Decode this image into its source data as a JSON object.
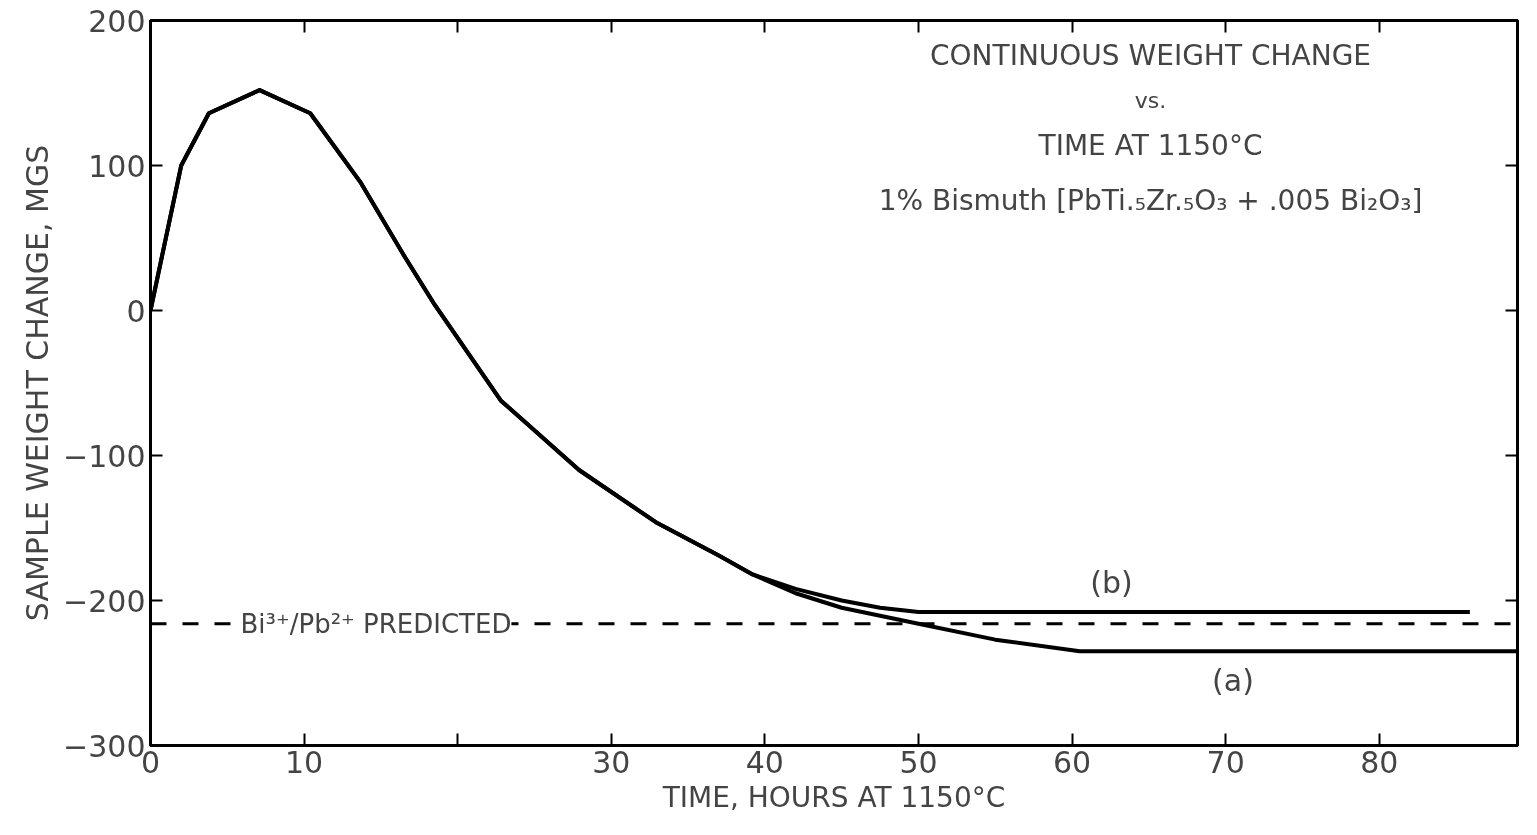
{
  "chart_data": {
    "type": "line",
    "title": "CONTINUOUS WEIGHT CHANGE\nvs.\nTIME AT 1150°C",
    "subtitle": "1% Bismuth [PbTi.₅Zr.₅O₃ + .005 Bi₂O₃]",
    "xlabel": "TIME, HOURS AT 1150°C",
    "ylabel": "SAMPLE WEIGHT CHANGE, MGS",
    "series": [
      {
        "name": "(a)",
        "color": "#000000",
        "x": [
          0,
          2.0,
          3.8,
          7.1,
          10.4,
          13.7,
          16.5,
          18.5,
          22.8,
          27.9,
          32.9,
          37,
          39.2,
          42,
          45,
          50,
          55,
          60.5,
          89
        ],
        "values": [
          0,
          100,
          136,
          152,
          136,
          88,
          38,
          4,
          -62,
          -110,
          -146,
          -169,
          -182,
          -195,
          -205,
          -216,
          -227,
          -235,
          -235
        ]
      },
      {
        "name": "(b)",
        "color": "#000000",
        "x": [
          0,
          2.0,
          3.8,
          7.1,
          10.4,
          13.7,
          16.5,
          18.5,
          22.8,
          27.9,
          32.9,
          37,
          39.2,
          42,
          45,
          47.5,
          50,
          85.9
        ],
        "values": [
          0,
          100,
          136,
          152,
          136,
          88,
          38,
          4,
          -62,
          -110,
          -146,
          -169,
          -182,
          -192,
          -200,
          -205,
          -208,
          -208
        ]
      }
    ],
    "ref_lines": [
      {
        "axis": "y",
        "value": -216,
        "label": "Bi³⁺/Pb²⁺ PREDICTED",
        "line_style": "dashed",
        "color": "#000000"
      }
    ],
    "xlim": [
      0,
      89
    ],
    "ylim": [
      -300,
      200
    ],
    "xticks": [
      0,
      10,
      {
        "value": 20,
        "label": null
      },
      30,
      40,
      50,
      60,
      70,
      80
    ],
    "yticks": [
      -300,
      -200,
      -100,
      0,
      100,
      200
    ],
    "grid": false,
    "legend": false,
    "marker": "none",
    "line_style": "solid"
  }
}
